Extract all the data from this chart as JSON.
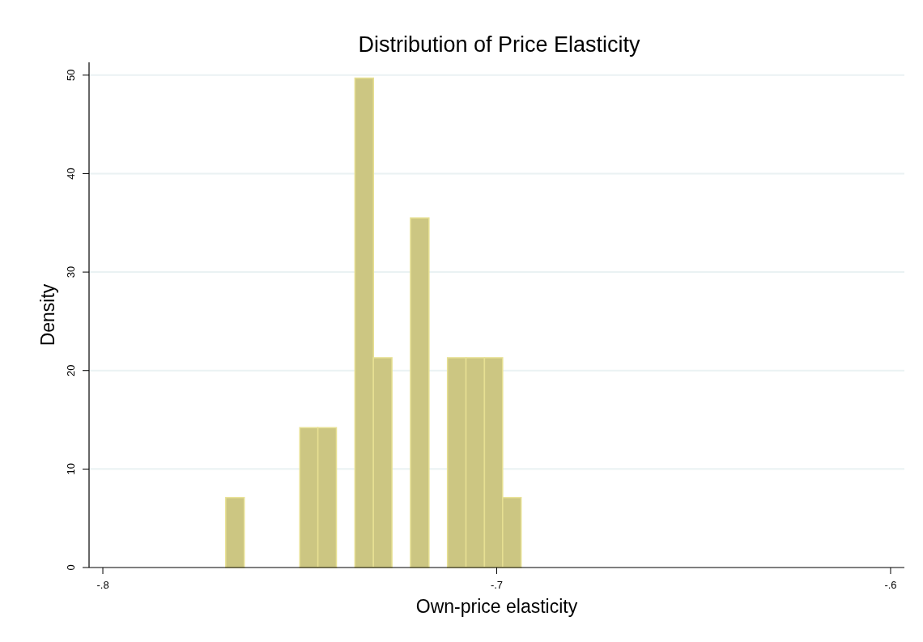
{
  "chart_data": {
    "type": "histogram",
    "title": "Distribution of Price Elasticity",
    "xlabel": "Own-price elasticity",
    "ylabel": "Density",
    "bins": [
      -0.7688,
      -0.7641,
      -0.7594,
      -0.7547,
      -0.75,
      -0.7454,
      -0.7407,
      -0.736,
      -0.7313,
      -0.7266,
      -0.7219,
      -0.7172,
      -0.7125,
      -0.7078,
      -0.7031,
      -0.6985,
      -0.6938
    ],
    "values": [
      7.1,
      0,
      0,
      0,
      14.2,
      14.2,
      0,
      49.7,
      21.3,
      0,
      35.5,
      0,
      21.3,
      21.3,
      21.3,
      7.1
    ],
    "color": "#ccc682",
    "xlim": [
      -0.8035,
      -0.5965
    ],
    "xticks": [
      {
        "value": -0.8,
        "label": "-.8"
      },
      {
        "value": -0.7,
        "label": "-.7"
      },
      {
        "value": -0.6,
        "label": "-.6"
      }
    ],
    "ylim": [
      0,
      51.3
    ],
    "yticks": [
      0,
      10,
      20,
      30,
      40,
      50
    ],
    "grid": "y"
  }
}
